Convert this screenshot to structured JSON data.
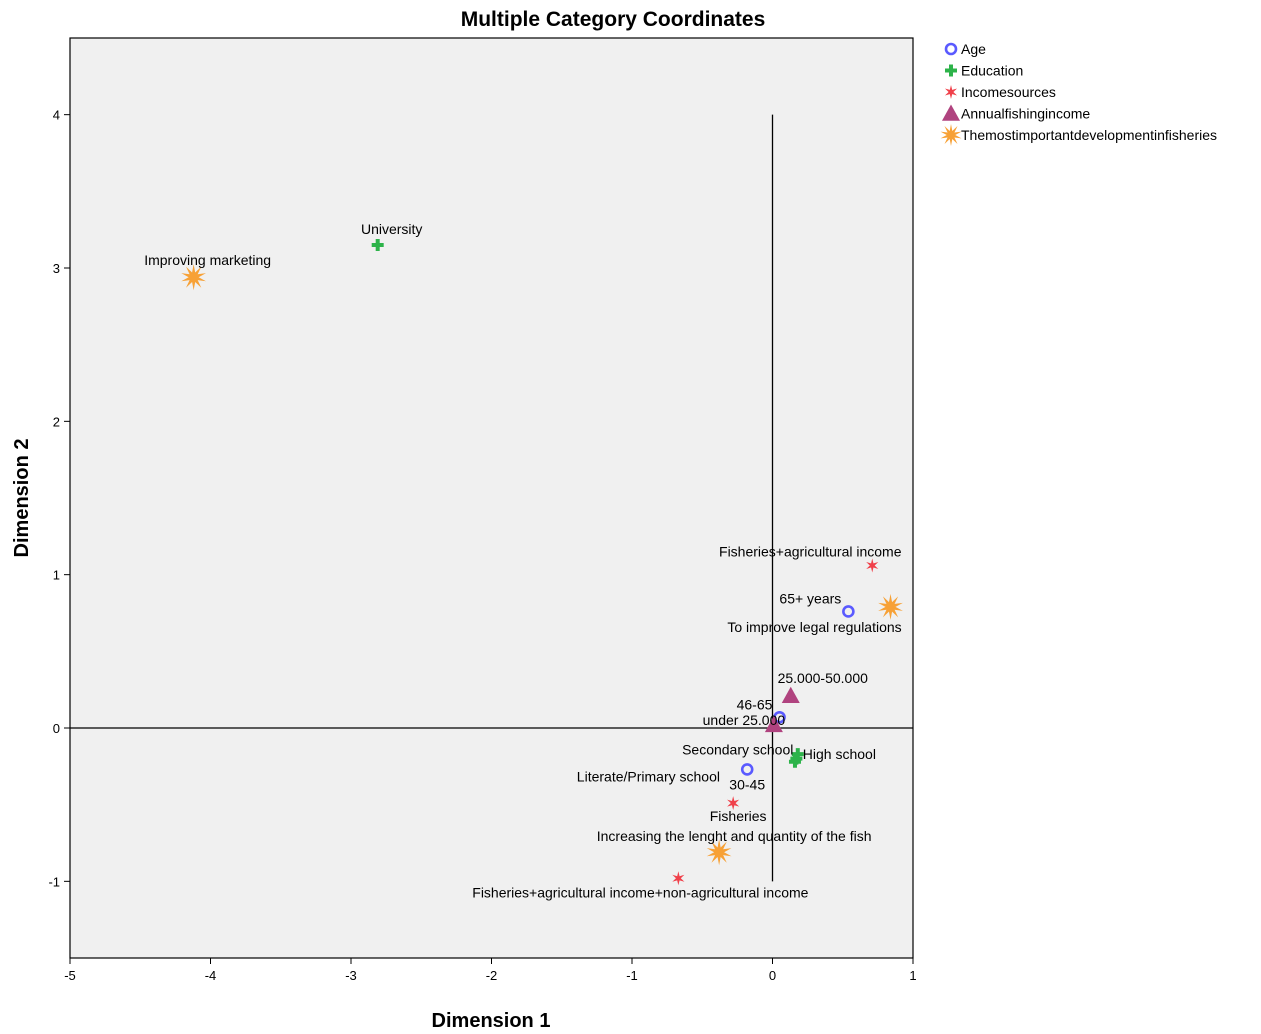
{
  "chart_data": {
    "type": "scatter",
    "title": "Multiple Category Coordinates",
    "xlabel": "Dimension 1",
    "ylabel": "Dimension 2",
    "xlim": [
      -5,
      1
    ],
    "ylim": [
      -1.5,
      4.5
    ],
    "xticks": [
      -5,
      -4,
      -3,
      -2,
      -1,
      0,
      1
    ],
    "yticks": [
      -1,
      0,
      1,
      2,
      3,
      4
    ],
    "grid": false,
    "reference_lines": {
      "x": 0,
      "y": 0
    },
    "legend_position": "right",
    "series": [
      {
        "name": "Age",
        "marker": "circle",
        "color": "#5a5aff",
        "points": [
          {
            "label": "65+ years",
            "x": 0.54,
            "y": 0.76
          },
          {
            "label": "46-65",
            "x": 0.05,
            "y": 0.07
          },
          {
            "label": "30-45",
            "x": -0.18,
            "y": -0.27
          }
        ]
      },
      {
        "name": "Education",
        "marker": "cross",
        "color": "#2db34a",
        "points": [
          {
            "label": "University",
            "x": -2.81,
            "y": 3.15
          },
          {
            "label": "High school",
            "x": 0.18,
            "y": -0.17
          },
          {
            "label": "Secondary school",
            "x": 0.17,
            "y": -0.2
          },
          {
            "label": "Literate/Primary school",
            "x": 0.16,
            "y": -0.22
          }
        ]
      },
      {
        "name": "Incomesources",
        "marker": "asterisk",
        "color": "#f0404a",
        "points": [
          {
            "label": "Fisheries+agricultural income",
            "x": 0.71,
            "y": 1.06
          },
          {
            "label": "Fisheries",
            "x": -0.28,
            "y": -0.49
          },
          {
            "label": "Fisheries+agricultural income+non-agricultural income",
            "x": -0.67,
            "y": -0.98
          }
        ]
      },
      {
        "name": "Annualfishingincome",
        "marker": "triangle",
        "color": "#b0437f",
        "points": [
          {
            "label": "25.000-50.000",
            "x": 0.13,
            "y": 0.21
          },
          {
            "label": "under 25.000",
            "x": 0.01,
            "y": 0.02
          }
        ]
      },
      {
        "name": "Themostimportantdevelopmentinfisheries",
        "marker": "star",
        "color": "#f7a136",
        "points": [
          {
            "label": "Improving marketing",
            "x": -4.12,
            "y": 2.94
          },
          {
            "label": "To improve legal regulations",
            "x": 0.84,
            "y": 0.79
          },
          {
            "label": "Increasing the lenght and quantity of the fish",
            "x": -0.38,
            "y": -0.81
          }
        ]
      }
    ]
  }
}
